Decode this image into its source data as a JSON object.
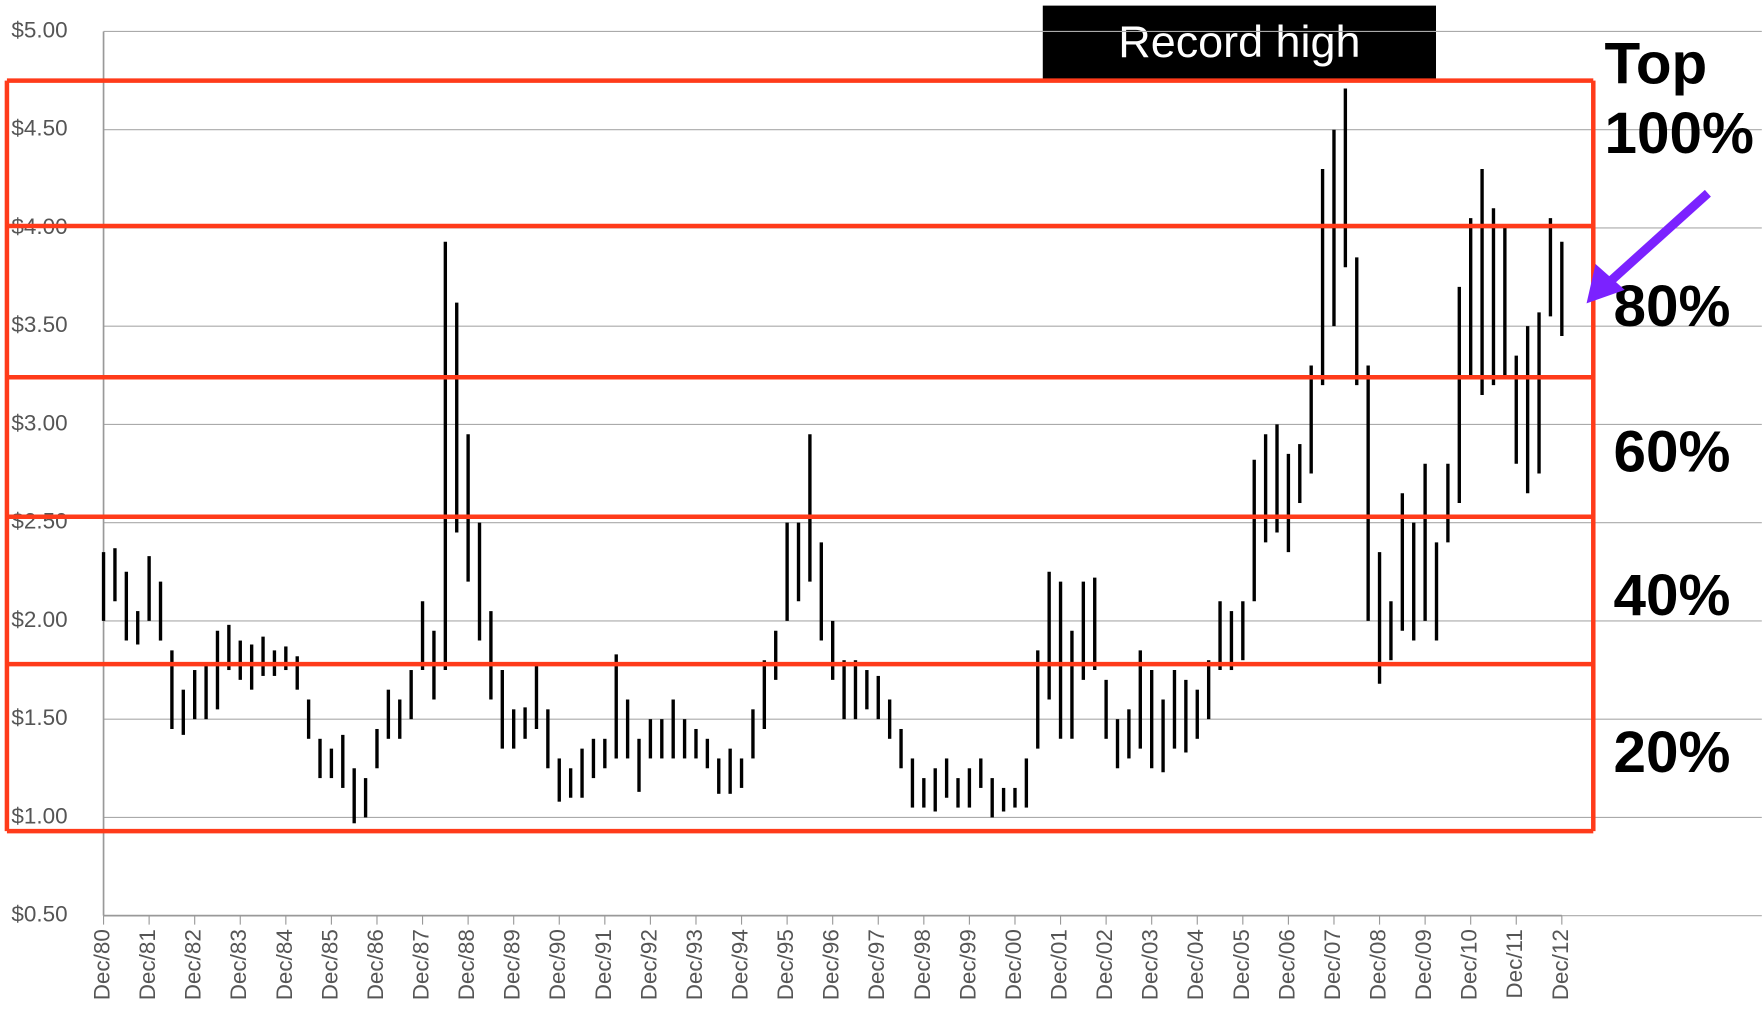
{
  "chart_data": {
    "type": "range-bar",
    "categories": [
      "Dec/80",
      null,
      null,
      null,
      "Dec/81",
      null,
      null,
      null,
      "Dec/82",
      null,
      null,
      null,
      "Dec/83",
      null,
      null,
      null,
      "Dec/84",
      null,
      null,
      null,
      "Dec/85",
      null,
      null,
      null,
      "Dec/86",
      null,
      null,
      null,
      "Dec/87",
      null,
      null,
      null,
      "Dec/88",
      null,
      null,
      null,
      "Dec/89",
      null,
      null,
      null,
      "Dec/90",
      null,
      null,
      null,
      "Dec/91",
      null,
      null,
      null,
      "Dec/92",
      null,
      null,
      null,
      "Dec/93",
      null,
      null,
      null,
      "Dec/94",
      null,
      null,
      null,
      "Dec/95",
      null,
      null,
      null,
      "Dec/96",
      null,
      null,
      null,
      "Dec/97",
      null,
      null,
      null,
      "Dec/98",
      null,
      null,
      null,
      "Dec/99",
      null,
      null,
      null,
      "Dec/00",
      null,
      null,
      null,
      "Dec/01",
      null,
      null,
      null,
      "Dec/02",
      null,
      null,
      null,
      "Dec/03",
      null,
      null,
      null,
      "Dec/04",
      null,
      null,
      null,
      "Dec/05",
      null,
      null,
      null,
      "Dec/06",
      null,
      null,
      null,
      "Dec/07",
      null,
      null,
      null,
      "Dec/08",
      null,
      null,
      null,
      "Dec/09",
      null,
      null,
      null,
      "Dec/10",
      null,
      null,
      null,
      "Dec/11",
      null,
      null,
      null,
      "Dec/12"
    ],
    "low": [
      2.0,
      2.1,
      1.9,
      1.88,
      2.0,
      1.9,
      1.45,
      1.42,
      1.5,
      1.5,
      1.55,
      1.75,
      1.7,
      1.65,
      1.72,
      1.72,
      1.75,
      1.65,
      1.4,
      1.2,
      1.2,
      1.15,
      0.97,
      1.0,
      1.25,
      1.4,
      1.4,
      1.5,
      1.75,
      1.6,
      1.75,
      2.45,
      2.2,
      1.9,
      1.6,
      1.35,
      1.35,
      1.4,
      1.45,
      1.25,
      1.08,
      1.1,
      1.1,
      1.2,
      1.25,
      1.3,
      1.3,
      1.13,
      1.3,
      1.3,
      1.3,
      1.3,
      1.3,
      1.25,
      1.12,
      1.12,
      1.15,
      1.3,
      1.45,
      1.7,
      2.0,
      2.1,
      2.2,
      1.9,
      1.7,
      1.5,
      1.5,
      1.55,
      1.5,
      1.4,
      1.25,
      1.05,
      1.05,
      1.03,
      1.1,
      1.05,
      1.05,
      1.15,
      1.0,
      1.03,
      1.05,
      1.05,
      1.35,
      1.6,
      1.4,
      1.4,
      1.7,
      1.75,
      1.4,
      1.25,
      1.3,
      1.35,
      1.25,
      1.23,
      1.35,
      1.33,
      1.4,
      1.5,
      1.75,
      1.75,
      1.8,
      2.1,
      2.4,
      2.45,
      2.35,
      2.6,
      2.75,
      3.2,
      3.5,
      3.8,
      3.2,
      2.0,
      1.68,
      1.8,
      1.95,
      1.9,
      2.0,
      1.9,
      2.4,
      2.6,
      3.25,
      3.15,
      3.2,
      3.25,
      2.8,
      2.65,
      2.75,
      3.55,
      3.45
    ],
    "high": [
      2.35,
      2.37,
      2.25,
      2.05,
      2.33,
      2.2,
      1.85,
      1.65,
      1.75,
      1.78,
      1.95,
      1.98,
      1.9,
      1.88,
      1.92,
      1.85,
      1.87,
      1.82,
      1.6,
      1.4,
      1.35,
      1.42,
      1.25,
      1.2,
      1.45,
      1.65,
      1.6,
      1.75,
      2.1,
      1.95,
      3.93,
      3.62,
      2.95,
      2.5,
      2.05,
      1.75,
      1.55,
      1.56,
      1.78,
      1.55,
      1.3,
      1.25,
      1.35,
      1.4,
      1.4,
      1.83,
      1.6,
      1.4,
      1.5,
      1.5,
      1.6,
      1.5,
      1.45,
      1.4,
      1.3,
      1.35,
      1.3,
      1.55,
      1.8,
      1.95,
      2.5,
      2.5,
      2.95,
      2.4,
      2.0,
      1.8,
      1.8,
      1.75,
      1.72,
      1.6,
      1.45,
      1.3,
      1.2,
      1.25,
      1.3,
      1.2,
      1.25,
      1.3,
      1.2,
      1.15,
      1.15,
      1.3,
      1.85,
      2.25,
      2.2,
      1.95,
      2.2,
      2.22,
      1.7,
      1.5,
      1.55,
      1.85,
      1.75,
      1.6,
      1.75,
      1.7,
      1.65,
      1.8,
      2.1,
      2.05,
      2.1,
      2.82,
      2.95,
      3.0,
      2.85,
      2.9,
      3.3,
      4.3,
      4.5,
      4.71,
      3.85,
      3.3,
      2.35,
      2.1,
      2.65,
      2.5,
      2.8,
      2.4,
      2.8,
      3.7,
      4.05,
      4.3,
      4.1,
      4.0,
      3.35,
      3.5,
      3.57,
      4.05,
      3.93
    ],
    "color": "#000000",
    "ylim": [
      0.5,
      5.0
    ],
    "yticks": [
      {
        "value": 0.5,
        "label": "$0.50"
      },
      {
        "value": 1.0,
        "label": "$1.00"
      },
      {
        "value": 1.5,
        "label": "$1.50"
      },
      {
        "value": 2.0,
        "label": "$2.00"
      },
      {
        "value": 2.5,
        "label": "$2.50"
      },
      {
        "value": 3.0,
        "label": "$3.00"
      },
      {
        "value": 3.5,
        "label": "$3.50"
      },
      {
        "value": 4.0,
        "label": "$4.00"
      },
      {
        "value": 4.5,
        "label": "$4.50"
      },
      {
        "value": 5.0,
        "label": "$5.00"
      }
    ],
    "grid": true,
    "band_edges": [
      0.93,
      1.78,
      2.53,
      3.24,
      4.01,
      4.75
    ],
    "band_color": "#ff3b1a",
    "band_labels": [
      "20%",
      "40%",
      "60%",
      "80%",
      "100%"
    ],
    "top_label": "Top",
    "annotation": "Record high"
  }
}
